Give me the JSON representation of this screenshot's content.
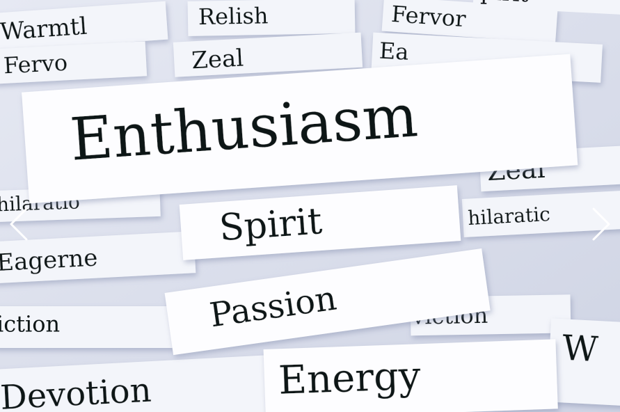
{
  "words": [
    "Warmtl",
    "Relish",
    "Fervor",
    "pirit",
    "Fervo",
    "Zeal",
    "Ea",
    "Enthusiasm",
    "Zeal",
    "hilaratio",
    "Spirit",
    "hilaratic",
    "Eagerne",
    "Passion",
    "iction",
    "viction",
    "Devotion",
    "Energy",
    "W"
  ]
}
